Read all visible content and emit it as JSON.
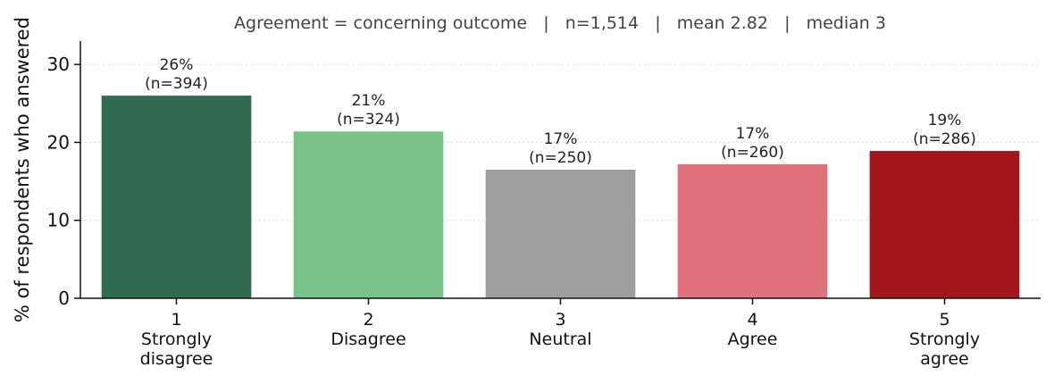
{
  "chart_data": {
    "type": "bar",
    "subtitle": "Agreement = concerning outcome   |   n=1,514   |   mean 2.82   |   median 3",
    "ylabel": "% of respondents who answered",
    "xlabel": "",
    "ylim": [
      0,
      33
    ],
    "yticks": [
      0,
      10,
      20,
      30
    ],
    "grid": "horizontal dotted",
    "categories": [
      [
        "1",
        "Strongly",
        "disagree"
      ],
      [
        "2",
        "Disagree"
      ],
      [
        "3",
        "Neutral"
      ],
      [
        "4",
        "Agree"
      ],
      [
        "5",
        "Strongly",
        "agree"
      ]
    ],
    "values": [
      26.0,
      21.4,
      16.5,
      17.2,
      18.9
    ],
    "data_labels": [
      [
        "26%",
        "(n=394)"
      ],
      [
        "21%",
        "(n=324)"
      ],
      [
        "17%",
        "(n=250)"
      ],
      [
        "17%",
        "(n=260)"
      ],
      [
        "19%",
        "(n=286)"
      ]
    ],
    "colors": [
      "#2e6b50",
      "#78c38a",
      "#9e9e9e",
      "#e0727b",
      "#a4161c"
    ]
  }
}
